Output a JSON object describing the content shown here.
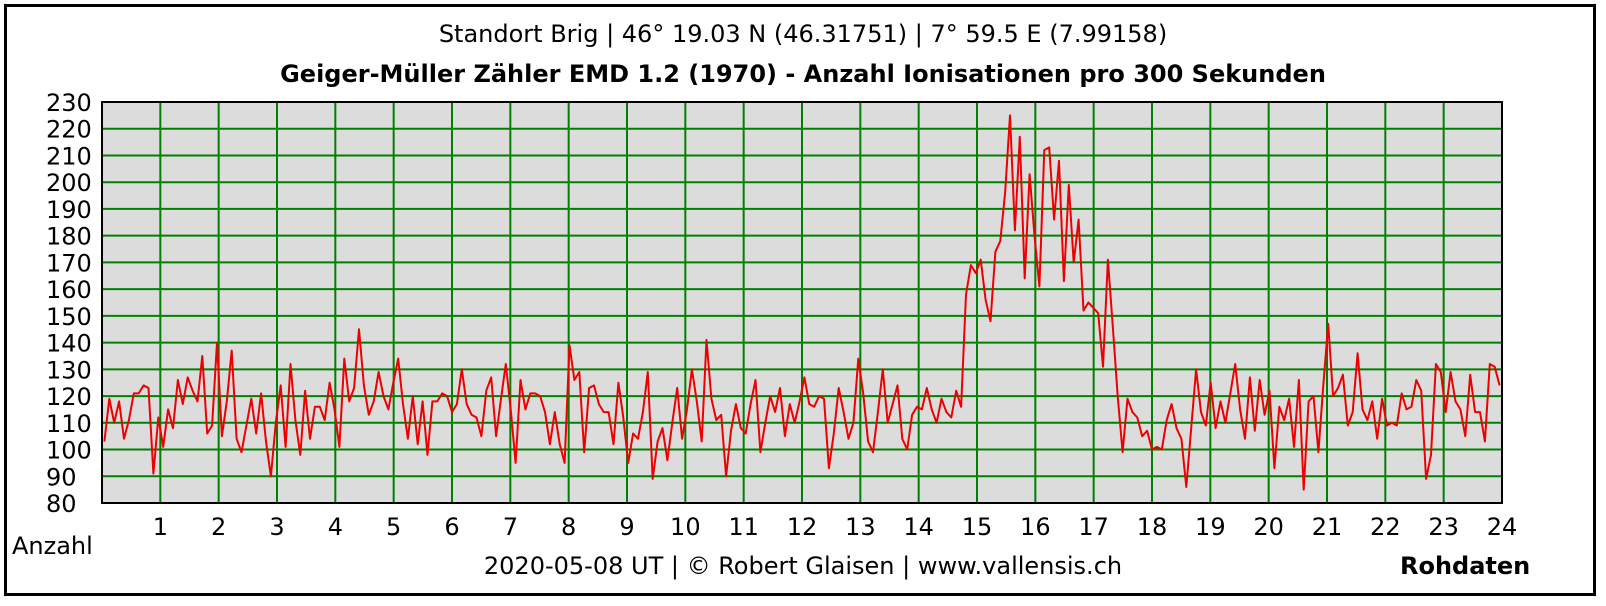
{
  "chart_data": {
    "type": "line",
    "subtitle": "Standort Brig | 46° 19.03 N (46.31751) | 7° 59.5 E (7.99158)",
    "title": "Geiger-Müller Zähler EMD 1.2 (1970) - Anzahl Ionisationen pro 300 Sekunden",
    "ylabel": "Anzahl",
    "footer": "2020-05-08 UT | © Robert Glaisen | www.vallensis.ch",
    "corner_label": "Rohdaten",
    "xlim": [
      0,
      24
    ],
    "ylim": [
      80,
      230
    ],
    "x_ticks": [
      "1",
      "2",
      "3",
      "4",
      "5",
      "6",
      "7",
      "8",
      "9",
      "10",
      "11",
      "12",
      "13",
      "14",
      "15",
      "16",
      "17",
      "18",
      "19",
      "20",
      "21",
      "22",
      "23",
      "24"
    ],
    "y_ticks": [
      "80",
      "90",
      "100",
      "110",
      "120",
      "130",
      "140",
      "150",
      "160",
      "170",
      "180",
      "190",
      "200",
      "210",
      "220",
      "230"
    ],
    "grid": true,
    "background": "#dcdcdc",
    "grid_color": "#008000",
    "line_color": "#ee0000",
    "series": [
      {
        "values": [
          103,
          119,
          110,
          118,
          104,
          111,
          121,
          121,
          124,
          123,
          91,
          112,
          101,
          115,
          108,
          126,
          117,
          127,
          122,
          118,
          135,
          106,
          109,
          140,
          105,
          118,
          137,
          104,
          99,
          109,
          119,
          106,
          121,
          103,
          90,
          110,
          124,
          101,
          132,
          111,
          98,
          122,
          104,
          116,
          116,
          111,
          125,
          115,
          101,
          134,
          118,
          123,
          145,
          124,
          113,
          118,
          129,
          120,
          115,
          125,
          134,
          117,
          104,
          120,
          102,
          118,
          98,
          118,
          118,
          121,
          120,
          114,
          117,
          130,
          117,
          113,
          112,
          105,
          122,
          127,
          105,
          119,
          132,
          115,
          95,
          126,
          115,
          121,
          121,
          120,
          114,
          102,
          114,
          102,
          95,
          139,
          126,
          129,
          99,
          123,
          124,
          117,
          114,
          114,
          102,
          125,
          112,
          95,
          106,
          104,
          114,
          129,
          89,
          103,
          108,
          96,
          110,
          123,
          104,
          115,
          130,
          118,
          103,
          141,
          119,
          111,
          113,
          90,
          107,
          117,
          108,
          106,
          117,
          126,
          99,
          110,
          120,
          114,
          123,
          105,
          117,
          110,
          118,
          127,
          117,
          116,
          120,
          119,
          93,
          106,
          123,
          114,
          104,
          110,
          134,
          121,
          103,
          99,
          114,
          130,
          110,
          117,
          124,
          104,
          100,
          113,
          116,
          115,
          123,
          115,
          110,
          119,
          114,
          112,
          122,
          116,
          158,
          169,
          166,
          171,
          156,
          148,
          174,
          178,
          196,
          225,
          182,
          217,
          164,
          203,
          180,
          161,
          212,
          213,
          186,
          208,
          163,
          199,
          170,
          186,
          152,
          155,
          153,
          151,
          131,
          171,
          146,
          120,
          99,
          119,
          114,
          112,
          105,
          107,
          100,
          101,
          100,
          111,
          117,
          108,
          104,
          86,
          108,
          130,
          114,
          109,
          125,
          108,
          118,
          110,
          121,
          132,
          115,
          104,
          127,
          107,
          126,
          113,
          122,
          93,
          116,
          111,
          119,
          101,
          126,
          85,
          118,
          120,
          99,
          124,
          147,
          120,
          123,
          128,
          109,
          114,
          136,
          115,
          111,
          118,
          104,
          119,
          109,
          110,
          109,
          121,
          115,
          116,
          126,
          122,
          89,
          98,
          132,
          129,
          114,
          129,
          118,
          115,
          105,
          128,
          114,
          114,
          103,
          132,
          131,
          124
        ]
      }
    ]
  }
}
